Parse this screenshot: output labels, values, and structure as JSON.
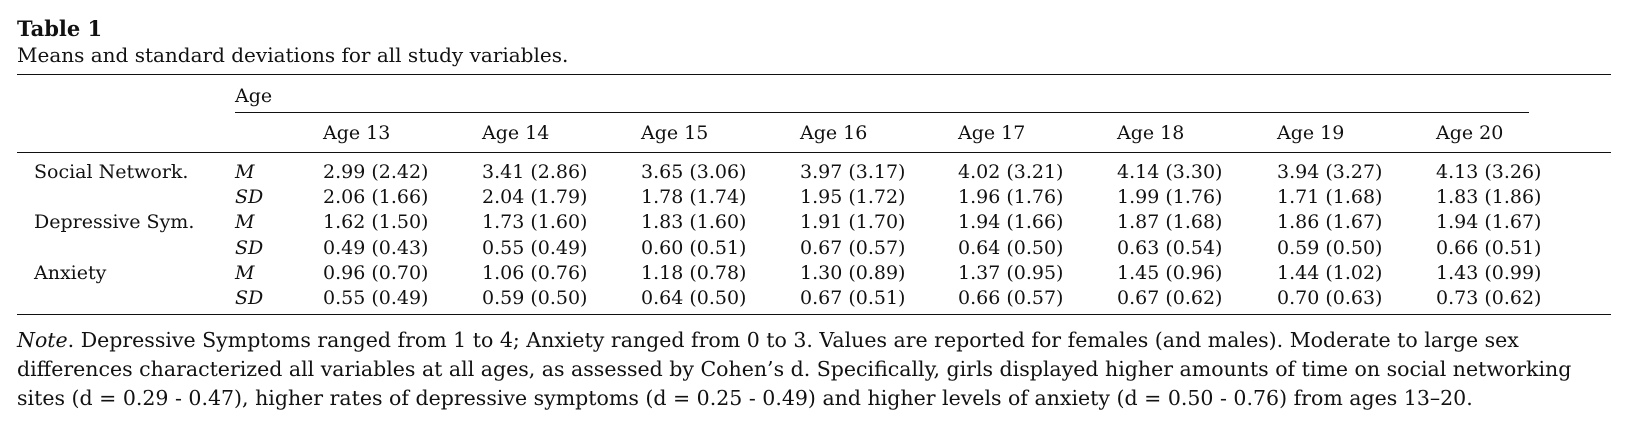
{
  "table": {
    "label": "Table 1",
    "caption": "Means and standard deviations for all study variables.",
    "spanner": "Age",
    "columns": [
      "Age 13",
      "Age 14",
      "Age 15",
      "Age 16",
      "Age 17",
      "Age 18",
      "Age 19",
      "Age 20"
    ],
    "rows": [
      {
        "variable": "Social Network.",
        "stat": "M",
        "values": [
          "2.99 (2.42)",
          "3.41 (2.86)",
          "3.65 (3.06)",
          "3.97 (3.17)",
          "4.02 (3.21)",
          "4.14 (3.30)",
          "3.94 (3.27)",
          "4.13 (3.26)"
        ]
      },
      {
        "variable": "",
        "stat": "SD",
        "values": [
          "2.06 (1.66)",
          "2.04 (1.79)",
          "1.78 (1.74)",
          "1.95 (1.72)",
          "1.96 (1.76)",
          "1.99 (1.76)",
          "1.71 (1.68)",
          "1.83 (1.86)"
        ]
      },
      {
        "variable": "Depressive Sym.",
        "stat": "M",
        "values": [
          "1.62 (1.50)",
          "1.73 (1.60)",
          "1.83 (1.60)",
          "1.91 (1.70)",
          "1.94 (1.66)",
          "1.87 (1.68)",
          "1.86 (1.67)",
          "1.94 (1.67)"
        ]
      },
      {
        "variable": "",
        "stat": "SD",
        "values": [
          "0.49 (0.43)",
          "0.55 (0.49)",
          "0.60 (0.51)",
          "0.67 (0.57)",
          "0.64 (0.50)",
          "0.63 (0.54)",
          "0.59 (0.50)",
          "0.66 (0.51)"
        ]
      },
      {
        "variable": "Anxiety",
        "stat": "M",
        "values": [
          "0.96 (0.70)",
          "1.06 (0.76)",
          "1.18 (0.78)",
          "1.30 (0.89)",
          "1.37 (0.95)",
          "1.45 (0.96)",
          "1.44 (1.02)",
          "1.43 (0.99)"
        ]
      },
      {
        "variable": "",
        "stat": "SD",
        "values": [
          "0.55 (0.49)",
          "0.59 (0.50)",
          "0.64 (0.50)",
          "0.67 (0.51)",
          "0.66 (0.57)",
          "0.67 (0.62)",
          "0.70 (0.63)",
          "0.73 (0.62)"
        ]
      }
    ]
  },
  "note": {
    "lead": "Note",
    "text": ". Depressive Symptoms ranged from 1 to 4; Anxiety ranged from 0 to 3. Values are reported for females (and males). Moderate to large sex differences characterized all variables at all ages, as assessed by Cohen’s d. Specifically, girls displayed higher amounts of time on social networking sites (d = 0.29 - 0.47), higher rates of depressive symptoms (d = 0.25 - 0.49) and higher levels of anxiety (d = 0.50 - 0.76) from ages 13–20."
  }
}
